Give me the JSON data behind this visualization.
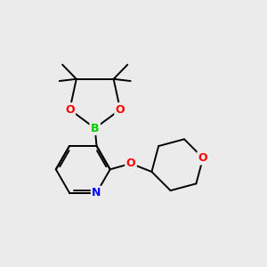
{
  "background_color": "#ebebeb",
  "bond_color": "#000000",
  "atom_colors": {
    "N": "#0000ff",
    "O": "#ff0000",
    "B": "#00cc00"
  },
  "bond_lw": 1.4,
  "figsize": [
    3.0,
    3.0
  ],
  "dpi": 100,
  "xlim": [
    0,
    10
  ],
  "ylim": [
    0,
    10
  ]
}
